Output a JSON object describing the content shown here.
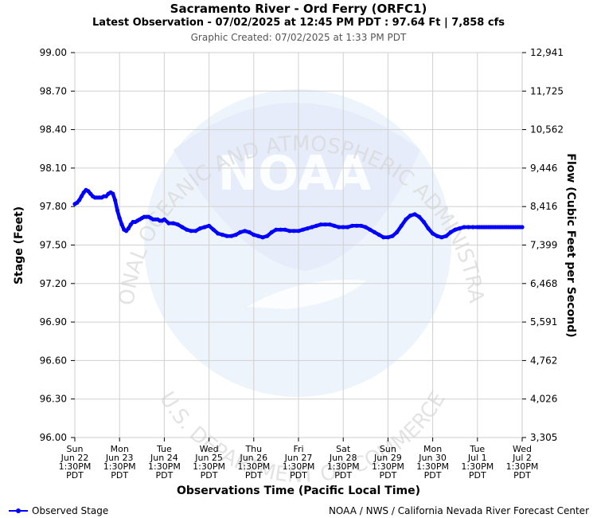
{
  "header": {
    "title": "Sacramento River - Ord Ferry (ORFC1)",
    "subtitle": "Latest Observation - 07/02/2025 at 12:45 PM PDT : 97.64 Ft | 7,858 cfs",
    "created": "Graphic Created: 07/02/2025 at 1:33 PM PDT"
  },
  "legend": {
    "label": "Observed Stage",
    "color": "#0000ff"
  },
  "credit": "NOAA / NWS / California Nevada River Forecast Center",
  "watermark": {
    "logo_text": "NOAA",
    "ring_top": "NATIONAL OCEANIC AND ATMOSPHERIC ADMINISTRATION",
    "ring_bottom": "U.S. DEPARTMENT OF COMMERCE"
  },
  "chart_data": {
    "type": "line",
    "xlabel": "Observations Time (Pacific Local Time)",
    "ylabel": "Stage (Feet)",
    "ylabel_right": "Flow (Cubic Feet per Second)",
    "ylim": [
      96.0,
      99.0
    ],
    "grid": true,
    "y_ticks": [
      "96.00",
      "96.30",
      "96.60",
      "96.90",
      "97.20",
      "97.50",
      "97.80",
      "98.10",
      "98.40",
      "98.70",
      "99.00"
    ],
    "y_right_ticks": [
      "3,305",
      "4,026",
      "4,762",
      "5,591",
      "6,468",
      "7,399",
      "8,416",
      "9,446",
      "10,562",
      "11,725",
      "12,941"
    ],
    "x_ticks": [
      {
        "day": "Sun",
        "date": "Jun 22",
        "time": "1:30PM",
        "tz": "PDT"
      },
      {
        "day": "Mon",
        "date": "Jun 23",
        "time": "1:30PM",
        "tz": "PDT"
      },
      {
        "day": "Tue",
        "date": "Jun 24",
        "time": "1:30PM",
        "tz": "PDT"
      },
      {
        "day": "Wed",
        "date": "Jun 25",
        "time": "1:30PM",
        "tz": "PDT"
      },
      {
        "day": "Thu",
        "date": "Jun 26",
        "time": "1:30PM",
        "tz": "PDT"
      },
      {
        "day": "Fri",
        "date": "Jun 27",
        "time": "1:30PM",
        "tz": "PDT"
      },
      {
        "day": "Sat",
        "date": "Jun 28",
        "time": "1:30PM",
        "tz": "PDT"
      },
      {
        "day": "Sun",
        "date": "Jun 29",
        "time": "1:30PM",
        "tz": "PDT"
      },
      {
        "day": "Mon",
        "date": "Jun 30",
        "time": "1:30PM",
        "tz": "PDT"
      },
      {
        "day": "Tue",
        "date": "Jul 1",
        "time": "1:30PM",
        "tz": "PDT"
      },
      {
        "day": "Wed",
        "date": "Jul 2",
        "time": "1:30PM",
        "tz": "PDT"
      }
    ],
    "series": [
      {
        "name": "Observed Stage",
        "color": "#0000ff",
        "x": [
          0,
          0.05,
          0.1,
          0.15,
          0.2,
          0.25,
          0.3,
          0.35,
          0.4,
          0.45,
          0.5,
          0.55,
          0.6,
          0.65,
          0.7,
          0.75,
          0.8,
          0.85,
          0.9,
          0.95,
          1.0,
          1.05,
          1.1,
          1.15,
          1.2,
          1.25,
          1.3,
          1.35,
          1.4,
          1.45,
          1.5,
          1.55,
          1.6,
          1.65,
          1.7,
          1.75,
          1.8,
          1.85,
          1.9,
          1.95,
          2.0,
          2.1,
          2.2,
          2.3,
          2.4,
          2.5,
          2.6,
          2.7,
          2.8,
          2.9,
          3.0,
          3.1,
          3.2,
          3.3,
          3.4,
          3.5,
          3.6,
          3.7,
          3.8,
          3.9,
          4.0,
          4.1,
          4.2,
          4.3,
          4.4,
          4.5,
          4.6,
          4.7,
          4.8,
          4.9,
          5.0,
          5.1,
          5.2,
          5.3,
          5.4,
          5.5,
          5.6,
          5.7,
          5.8,
          5.9,
          6.0,
          6.1,
          6.2,
          6.3,
          6.4,
          6.5,
          6.6,
          6.7,
          6.8,
          6.9,
          7.0,
          7.1,
          7.2,
          7.3,
          7.4,
          7.5,
          7.6,
          7.7,
          7.8,
          7.9,
          8.0,
          8.1,
          8.2,
          8.3,
          8.4,
          8.5,
          8.6,
          8.7,
          8.8,
          8.9,
          9.0,
          9.05,
          9.1,
          9.15,
          9.2,
          9.25,
          9.3,
          9.35,
          9.4,
          9.45,
          9.5,
          9.55,
          9.6,
          9.65,
          9.7,
          9.75,
          9.8,
          9.85,
          9.9,
          9.95,
          10.0
        ],
        "values": [
          97.82,
          97.83,
          97.85,
          97.88,
          97.91,
          97.93,
          97.92,
          97.9,
          97.88,
          97.87,
          97.87,
          97.87,
          97.87,
          97.88,
          97.88,
          97.9,
          97.91,
          97.9,
          97.85,
          97.77,
          97.71,
          97.66,
          97.62,
          97.61,
          97.63,
          97.66,
          97.68,
          97.68,
          97.69,
          97.7,
          97.71,
          97.72,
          97.72,
          97.72,
          97.71,
          97.7,
          97.7,
          97.7,
          97.69,
          97.69,
          97.7,
          97.67,
          97.67,
          97.66,
          97.64,
          97.62,
          97.61,
          97.61,
          97.63,
          97.64,
          97.65,
          97.62,
          97.59,
          97.58,
          97.57,
          97.57,
          97.58,
          97.6,
          97.61,
          97.6,
          97.58,
          97.57,
          97.56,
          97.57,
          97.6,
          97.62,
          97.62,
          97.62,
          97.61,
          97.61,
          97.61,
          97.62,
          97.63,
          97.64,
          97.65,
          97.66,
          97.66,
          97.66,
          97.65,
          97.64,
          97.64,
          97.64,
          97.65,
          97.65,
          97.65,
          97.64,
          97.62,
          97.6,
          97.58,
          97.56,
          97.56,
          97.57,
          97.6,
          97.65,
          97.7,
          97.73,
          97.74,
          97.72,
          97.68,
          97.63,
          97.59,
          97.57,
          97.56,
          97.57,
          97.6,
          97.62,
          97.63,
          97.64,
          97.64,
          97.64,
          97.64,
          97.64,
          97.64,
          97.64,
          97.64,
          97.64,
          97.64,
          97.64,
          97.64,
          97.64,
          97.64,
          97.64,
          97.64,
          97.64,
          97.64,
          97.64,
          97.64,
          97.64,
          97.64,
          97.64,
          97.64
        ]
      }
    ]
  }
}
